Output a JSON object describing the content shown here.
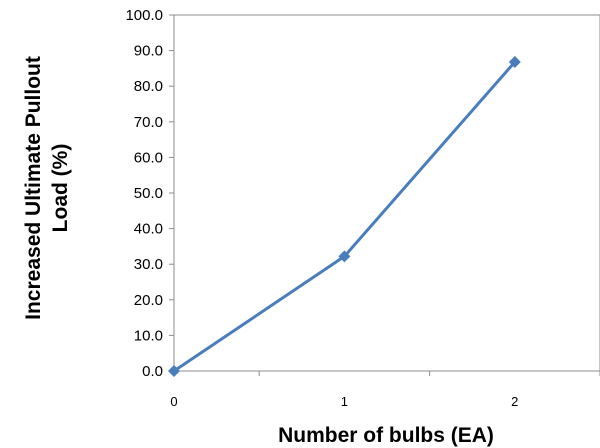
{
  "chart_data": {
    "type": "line",
    "xlabel": "Number of bulbs (EA)",
    "ylabel_lines": [
      "Increased Ultimate Pullout",
      "Load (%)"
    ],
    "x": [
      0,
      1,
      2
    ],
    "x_tick_labels": [
      "0",
      "1",
      "2"
    ],
    "xlim": [
      0,
      2.5
    ],
    "ylim": [
      0,
      100
    ],
    "y_ticks": [
      "0.0",
      "10.0",
      "20.0",
      "30.0",
      "40.0",
      "50.0",
      "60.0",
      "70.0",
      "80.0",
      "90.0",
      "100.0"
    ],
    "series": [
      {
        "values": [
          0,
          32.2,
          86.8
        ],
        "color": "#4a7ebb",
        "marker": "diamond"
      }
    ],
    "grid": false,
    "legend": "none"
  }
}
